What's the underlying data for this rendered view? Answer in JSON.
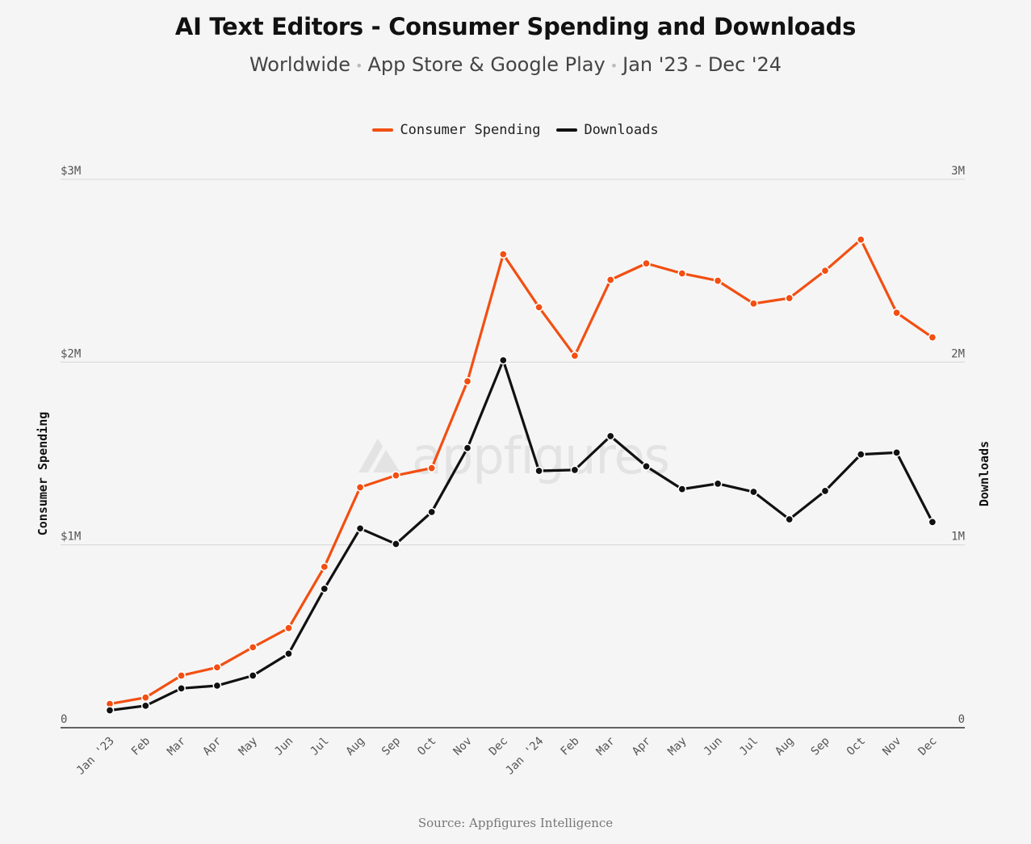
{
  "title": "AI Text Editors - Consumer Spending and Downloads",
  "subtitle": {
    "region": "Worldwide",
    "stores": "App Store & Google Play",
    "period": "Jan '23 - Dec '24",
    "separator": "•"
  },
  "source": "Source: Appfigures Intelligence",
  "watermark": "appfigures",
  "colors": {
    "spending": "#f24f12",
    "downloads": "#111111",
    "grid": "#d6d6d6",
    "baseline": "#333333"
  },
  "chart_data": {
    "type": "line",
    "categories": [
      "Jan '23",
      "Feb",
      "Mar",
      "Apr",
      "May",
      "Jun",
      "Jul",
      "Aug",
      "Sep",
      "Oct",
      "Nov",
      "Dec",
      "Jan '24",
      "Feb",
      "Mar",
      "Apr",
      "May",
      "Jun",
      "Jul",
      "Aug",
      "Sep",
      "Oct",
      "Nov",
      "Dec"
    ],
    "series": [
      {
        "name": "Consumer Spending",
        "axis": "left",
        "values": [
          130000,
          165000,
          285000,
          330000,
          440000,
          545000,
          880000,
          1315000,
          1380000,
          1420000,
          1895000,
          2590000,
          2300000,
          2035000,
          2450000,
          2540000,
          2485000,
          2445000,
          2320000,
          2350000,
          2500000,
          2670000,
          2270000,
          2135000
        ]
      },
      {
        "name": "Downloads",
        "axis": "right",
        "values": [
          95000,
          120000,
          215000,
          230000,
          285000,
          405000,
          760000,
          1090000,
          1005000,
          1180000,
          1530000,
          2010000,
          1405000,
          1410000,
          1595000,
          1430000,
          1305000,
          1335000,
          1290000,
          1140000,
          1295000,
          1495000,
          1505000,
          1125000
        ]
      }
    ],
    "ylabel_left": "Consumer Spending",
    "ylabel_right": "Downloads",
    "ylim_left": [
      0,
      3000000
    ],
    "ylim_right": [
      0,
      3000000
    ],
    "yticks_left": [
      "0",
      "$1M",
      "$2M",
      "$3M"
    ],
    "yticks_right": [
      "0",
      "1M",
      "2M",
      "3M"
    ],
    "legend_position": "top-center",
    "grid": true
  }
}
